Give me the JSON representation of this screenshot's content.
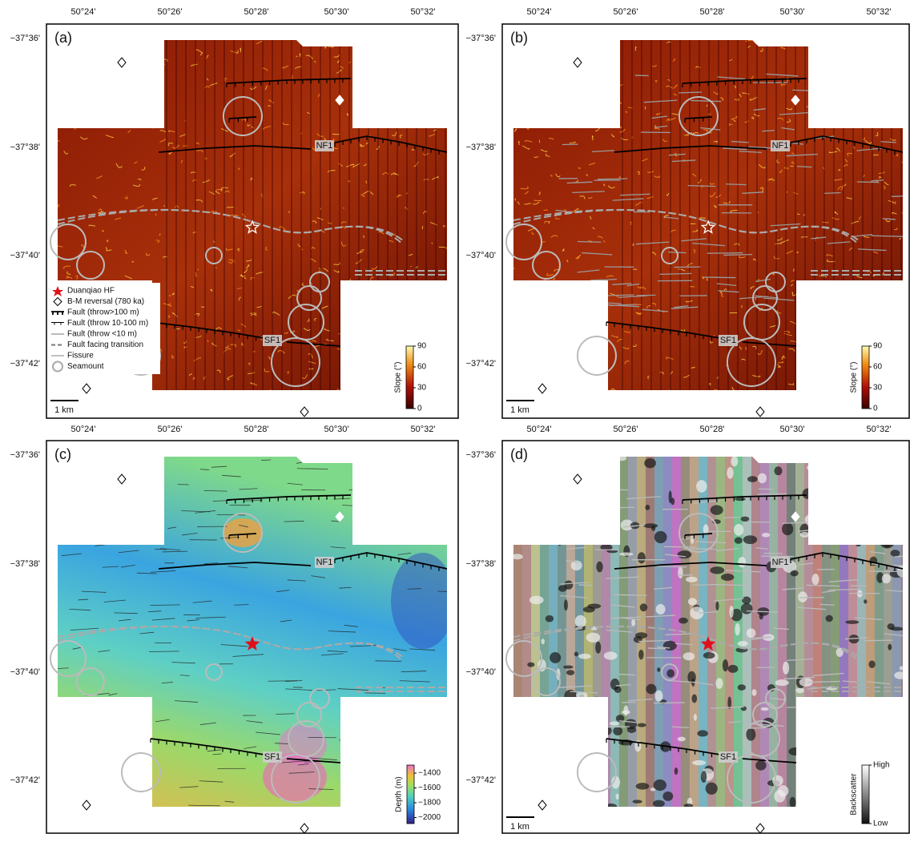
{
  "axes": {
    "lon_labels": [
      "50°24'",
      "50°26'",
      "50°28'",
      "50°30'",
      "50°32'"
    ],
    "lat_labels": [
      "−37°36'",
      "−37°38'",
      "−37°40'",
      "−37°42'"
    ]
  },
  "panels": [
    {
      "label": "(a)",
      "fault_labels": [
        "NF1",
        "SF1"
      ],
      "scale": "1 km",
      "colorbar": {
        "title": "Slope (°)",
        "ticks": [
          "90",
          "60",
          "30",
          "0"
        ]
      }
    },
    {
      "label": "(b)",
      "fault_labels": [
        "NF1",
        "SF1"
      ],
      "scale": "1 km",
      "colorbar": {
        "title": "Slope (°)",
        "ticks": [
          "90",
          "60",
          "30",
          "0"
        ]
      }
    },
    {
      "label": "(c)",
      "fault_labels": [
        "NF1",
        "SF1"
      ],
      "colorbar": {
        "title": "Depth (m)",
        "ticks": [
          "−1400",
          "−1600",
          "−1800",
          "−2000"
        ]
      }
    },
    {
      "label": "(d)",
      "fault_labels": [
        "NF1",
        "SF1"
      ],
      "scale": "1 km",
      "colorbar": {
        "title": "Backscatter",
        "ticks": [
          "High",
          "Low"
        ]
      }
    }
  ],
  "legend": [
    "Duanqiao HF",
    "B-M reversal (780 ka)",
    "Fault (throw>100 m)",
    "Fault (throw 10-100 m)",
    "Fault (throw <10 m)",
    "Fault facing transition",
    "Fissure",
    "Seamount"
  ]
}
